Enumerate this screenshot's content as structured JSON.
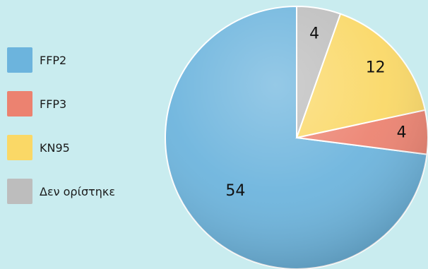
{
  "chart_data": {
    "type": "pie",
    "title": "",
    "legend_position": "left",
    "slices": [
      {
        "name": "FFP2",
        "value": 54,
        "label": "54",
        "color": "#6cb4dd"
      },
      {
        "name": "FFP3",
        "value": 4,
        "label": "4",
        "color": "#ec8270"
      },
      {
        "name": "KN95",
        "value": 12,
        "label": "12",
        "color": "#fad866"
      },
      {
        "name": "Δεν ορίστηκε",
        "value": 4,
        "label": "4",
        "color": "#bdbdbd"
      }
    ]
  }
}
